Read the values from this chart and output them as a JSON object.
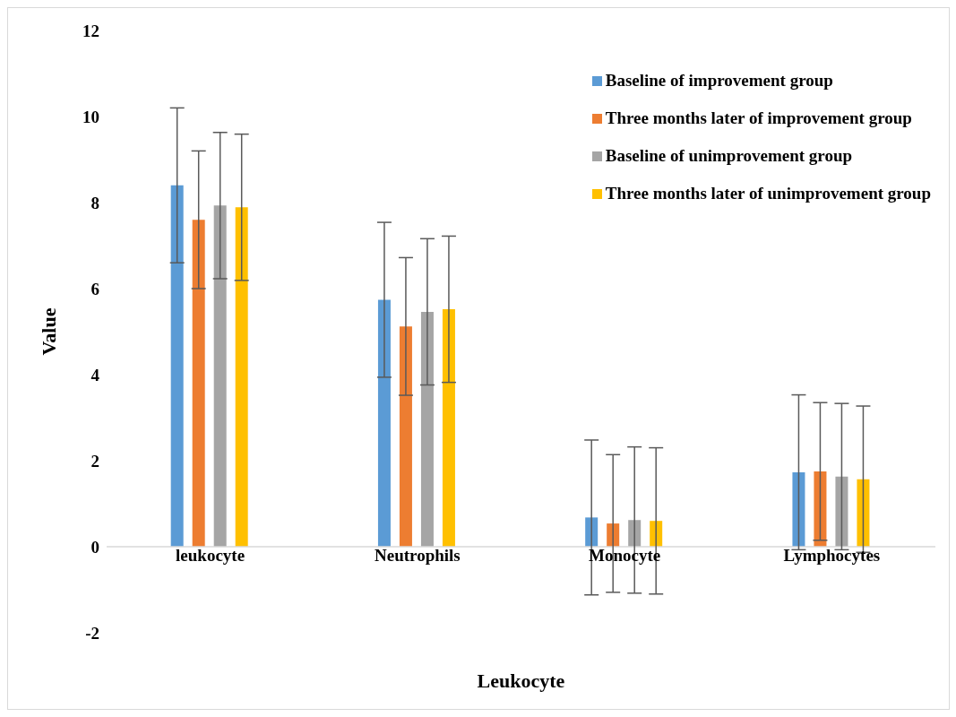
{
  "chart_data": {
    "type": "bar",
    "xlabel": "Leukocyte",
    "ylabel": "Value",
    "categories": [
      "leukocyte",
      "Neutrophils",
      "Monocyte",
      "Lymphocytes"
    ],
    "series": [
      {
        "name": "Baseline of improvement group",
        "color": "#5b9bd5",
        "values": [
          8.4,
          5.74,
          0.68,
          1.73
        ],
        "errors": [
          1.8,
          1.8,
          1.8,
          1.8
        ]
      },
      {
        "name": "Three months later of improvement group",
        "color": "#ed7d31",
        "values": [
          7.6,
          5.12,
          0.54,
          1.75
        ],
        "errors": [
          1.6,
          1.6,
          1.6,
          1.6
        ]
      },
      {
        "name": "Baseline of unimprovement group",
        "color": "#a5a5a5",
        "values": [
          7.93,
          5.46,
          0.62,
          1.63
        ],
        "errors": [
          1.7,
          1.7,
          1.7,
          1.7
        ]
      },
      {
        "name": "Three months later of unimprovement group",
        "color": "#ffc000",
        "values": [
          7.89,
          5.52,
          0.6,
          1.57
        ],
        "errors": [
          1.7,
          1.7,
          1.7,
          1.7
        ]
      }
    ],
    "ylim": [
      -2,
      12
    ],
    "yticks": [
      -2,
      0,
      2,
      4,
      6,
      8,
      10,
      12
    ],
    "grid": false,
    "legend": "top right"
  }
}
